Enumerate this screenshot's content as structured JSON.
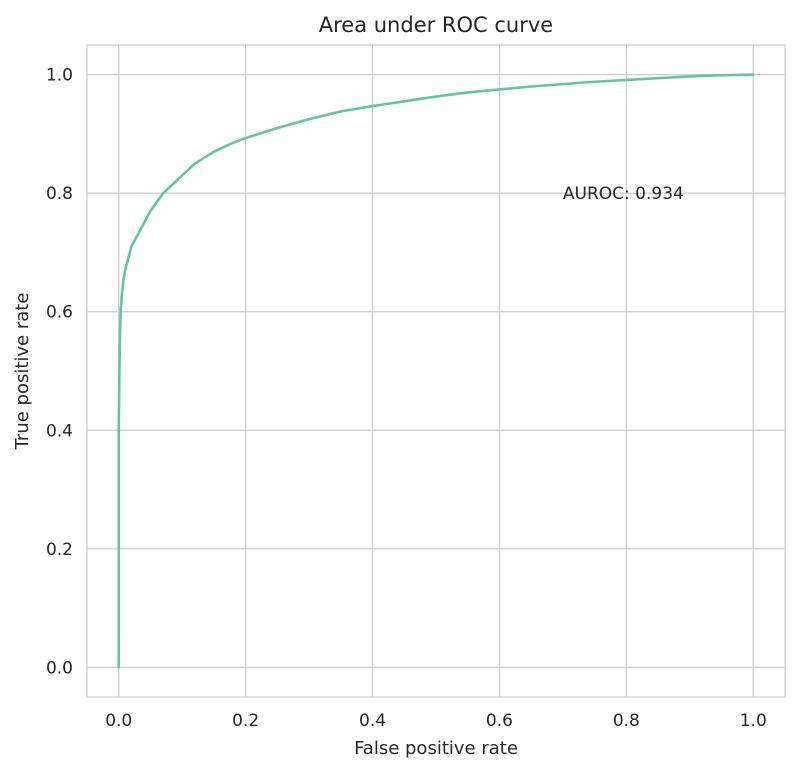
{
  "chart_data": {
    "type": "line",
    "title": "Area under ROC curve",
    "xlabel": "False positive rate",
    "ylabel": "True positive rate",
    "xlim": [
      -0.05,
      1.05
    ],
    "ylim": [
      -0.05,
      1.05
    ],
    "xticks": [
      0.0,
      0.2,
      0.4,
      0.6,
      0.8,
      1.0
    ],
    "yticks": [
      0.0,
      0.2,
      0.4,
      0.6,
      0.8,
      1.0
    ],
    "xtick_labels": [
      "0.0",
      "0.2",
      "0.4",
      "0.6",
      "0.8",
      "1.0"
    ],
    "ytick_labels": [
      "0.0",
      "0.2",
      "0.4",
      "0.6",
      "0.8",
      "1.0"
    ],
    "grid": true,
    "series": [
      {
        "color": "#66c2a5",
        "x": [
          0.0,
          0.0,
          0.001,
          0.002,
          0.003,
          0.005,
          0.007,
          0.01,
          0.015,
          0.02,
          0.03,
          0.04,
          0.05,
          0.06,
          0.07,
          0.08,
          0.1,
          0.12,
          0.15,
          0.18,
          0.2,
          0.25,
          0.3,
          0.35,
          0.4,
          0.45,
          0.5,
          0.55,
          0.6,
          0.65,
          0.7,
          0.75,
          0.8,
          0.85,
          0.9,
          0.95,
          1.0
        ],
        "y": [
          0.0,
          0.4,
          0.5,
          0.56,
          0.6,
          0.63,
          0.65,
          0.67,
          0.69,
          0.71,
          0.73,
          0.75,
          0.77,
          0.785,
          0.8,
          0.81,
          0.83,
          0.85,
          0.87,
          0.885,
          0.893,
          0.91,
          0.925,
          0.938,
          0.947,
          0.955,
          0.963,
          0.97,
          0.975,
          0.98,
          0.984,
          0.988,
          0.991,
          0.994,
          0.997,
          0.999,
          1.0
        ]
      }
    ],
    "annotations": [
      {
        "text": "AUROC: 0.934",
        "x": 0.7,
        "y": 0.8
      }
    ]
  }
}
